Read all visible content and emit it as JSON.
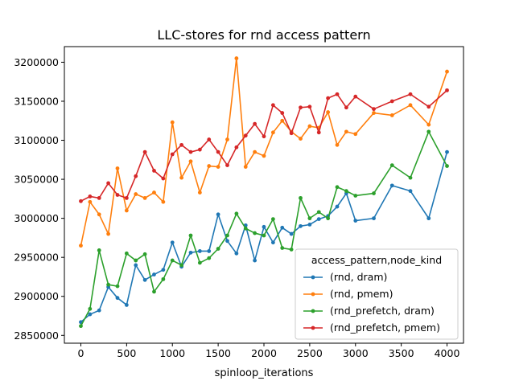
{
  "chart_data": {
    "type": "line",
    "title": "LLC-stores for rnd access pattern",
    "xlabel": "spinloop_iterations",
    "ylabel": "",
    "xlim": [
      -180,
      4180
    ],
    "ylim": [
      2840000,
      3220000
    ],
    "xticks": [
      0,
      500,
      1000,
      1500,
      2000,
      2500,
      3000,
      3500,
      4000
    ],
    "yticks": [
      2850000,
      2900000,
      2950000,
      3000000,
      3050000,
      3100000,
      3150000,
      3200000
    ],
    "grid": false,
    "legend": {
      "title": "access_pattern,node_kind",
      "position": "lower-right"
    },
    "series": [
      {
        "name": "(rnd, dram)",
        "color": "#1f77b4",
        "x": [
          0,
          100,
          200,
          300,
          400,
          500,
          600,
          700,
          800,
          900,
          1000,
          1100,
          1200,
          1300,
          1400,
          1500,
          1600,
          1700,
          1800,
          1900,
          2000,
          2100,
          2200,
          2300,
          2400,
          2500,
          2600,
          2700,
          2800,
          2900,
          3000,
          3200,
          3400,
          3600,
          3800,
          4000
        ],
        "y": [
          2867000,
          2877000,
          2882000,
          2912000,
          2898000,
          2889000,
          2940000,
          2921000,
          2928000,
          2934000,
          2969000,
          2938000,
          2956000,
          2958000,
          2958000,
          3005000,
          2971000,
          2955000,
          2991000,
          2946000,
          2989000,
          2969000,
          2988000,
          2980000,
          2990000,
          2992000,
          2999000,
          3003000,
          3015000,
          3032000,
          2997000,
          3000000,
          3042000,
          3035000,
          3000000,
          3085000
        ]
      },
      {
        "name": "(rnd, pmem)",
        "color": "#ff7f0e",
        "x": [
          0,
          100,
          200,
          300,
          400,
          500,
          600,
          700,
          800,
          900,
          1000,
          1100,
          1200,
          1300,
          1400,
          1500,
          1600,
          1700,
          1800,
          1900,
          2000,
          2100,
          2200,
          2300,
          2400,
          2500,
          2600,
          2700,
          2800,
          2900,
          3000,
          3200,
          3400,
          3600,
          3800,
          4000
        ],
        "y": [
          2965000,
          3021000,
          3005000,
          2980000,
          3064000,
          3010000,
          3031000,
          3026000,
          3033000,
          3021000,
          3123000,
          3052000,
          3073000,
          3033000,
          3067000,
          3066000,
          3101000,
          3205000,
          3066000,
          3085000,
          3080000,
          3110000,
          3125000,
          3111000,
          3102000,
          3118000,
          3116000,
          3136000,
          3094000,
          3111000,
          3108000,
          3135000,
          3132000,
          3145000,
          3120000,
          3188000
        ]
      },
      {
        "name": "(rnd_prefetch, dram)",
        "color": "#2ca02c",
        "x": [
          0,
          100,
          200,
          300,
          400,
          500,
          600,
          700,
          800,
          900,
          1000,
          1100,
          1200,
          1300,
          1400,
          1500,
          1600,
          1700,
          1800,
          1900,
          2000,
          2100,
          2200,
          2300,
          2400,
          2500,
          2600,
          2700,
          2800,
          2900,
          3000,
          3200,
          3400,
          3600,
          3800,
          4000
        ],
        "y": [
          2862000,
          2884000,
          2959000,
          2915000,
          2913000,
          2955000,
          2946000,
          2954000,
          2906000,
          2922000,
          2946000,
          2940000,
          2978000,
          2943000,
          2949000,
          2961000,
          2978000,
          3006000,
          2987000,
          2981000,
          2978000,
          2999000,
          2962000,
          2960000,
          3026000,
          3000000,
          3008000,
          3000000,
          3040000,
          3035000,
          3029000,
          3032000,
          3068000,
          3052000,
          3111000,
          3067000
        ]
      },
      {
        "name": "(rnd_prefetch, pmem)",
        "color": "#d62728",
        "x": [
          0,
          100,
          200,
          300,
          400,
          500,
          600,
          700,
          800,
          900,
          1000,
          1100,
          1200,
          1300,
          1400,
          1500,
          1600,
          1700,
          1800,
          1900,
          2000,
          2100,
          2200,
          2300,
          2400,
          2500,
          2600,
          2700,
          2800,
          2900,
          3000,
          3200,
          3400,
          3600,
          3800,
          4000
        ],
        "y": [
          3022000,
          3028000,
          3026000,
          3045000,
          3030000,
          3026000,
          3054000,
          3085000,
          3061000,
          3051000,
          3082000,
          3094000,
          3085000,
          3088000,
          3101000,
          3085000,
          3068000,
          3091000,
          3106000,
          3121000,
          3105000,
          3145000,
          3135000,
          3109000,
          3142000,
          3143000,
          3110000,
          3154000,
          3159000,
          3142000,
          3156000,
          3140000,
          3150000,
          3159000,
          3143000,
          3164000
        ]
      }
    ]
  }
}
